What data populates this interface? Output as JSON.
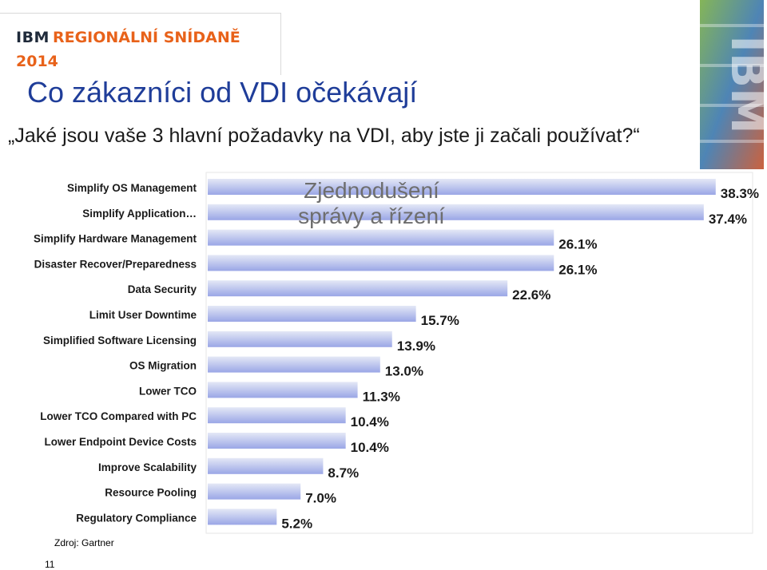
{
  "header": {
    "brand_ibm": "IBM",
    "brand_event": "REGIONÁLNÍ SNÍDANĚ",
    "brand_year": "2014",
    "title": "Co zákazníci od VDI očekávají",
    "subtitle": "„Jaké jsou vaše 3 hlavní požadavky na VDI, aby jste ji začali používat?“",
    "logo_text": "IBM"
  },
  "colors": {
    "title": "#1f3d99",
    "brand_orange": "#e8621a",
    "bar_light": "#e4e8f6",
    "bar_dark": "#9aa6e6",
    "annotation": "#6e6e6e"
  },
  "chart_data": {
    "type": "bar",
    "orientation": "horizontal",
    "categories": [
      "Simplify OS Management",
      "Simplify Application…",
      "Simplify Hardware Management",
      "Disaster Recover/Preparedness",
      "Data Security",
      "Limit User Downtime",
      "Simplified Software Licensing",
      "OS Migration",
      "Lower TCO",
      "Lower TCO Compared with PC",
      "Lower Endpoint Device Costs",
      "Improve Scalability",
      "Resource Pooling",
      "Regulatory Compliance"
    ],
    "values": [
      38.3,
      37.4,
      26.1,
      26.1,
      22.6,
      15.7,
      13.9,
      13.0,
      11.3,
      10.4,
      10.4,
      8.7,
      7.0,
      5.2
    ],
    "labels": [
      "38.3%",
      "37.4%",
      "26.1%",
      "26.1%",
      "22.6%",
      "15.7%",
      "13.9%",
      "13.0%",
      "11.3%",
      "10.4%",
      "10.4%",
      "8.7%",
      "7.0%",
      "5.2%"
    ],
    "xlim": [
      0,
      40
    ],
    "annotation": [
      "Zjednodušení",
      "správy a řízení"
    ],
    "grid": false
  },
  "footer": {
    "source": "Zdroj:   Gartner",
    "page": "11"
  }
}
